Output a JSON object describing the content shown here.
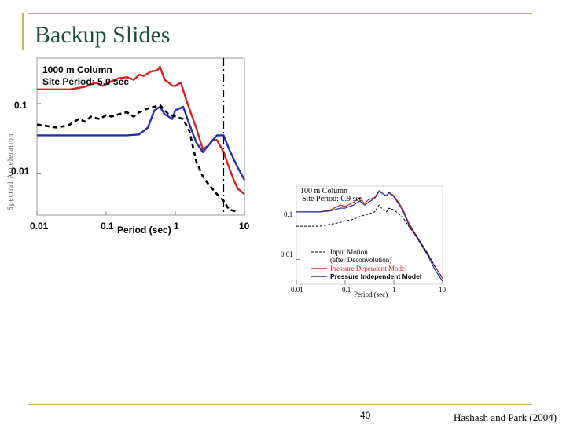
{
  "slide": {
    "title": "Backup Slides",
    "page_number": "40",
    "citation": "Hashash and Park (2004)"
  },
  "colors": {
    "accent_rule": "#c9b458",
    "title": "#1f4e3d",
    "pressure_dependent": "#d42020",
    "pressure_independent": "#2030b0",
    "input_motion": "#000000"
  },
  "chart_data": [
    {
      "type": "line",
      "title": "1000 m Column",
      "subtitle": "Site Period: 5.0 sec",
      "xlabel": "Period (sec)",
      "ylabel": "Spectral Acceleration",
      "xscale": "log",
      "yscale": "log",
      "xlim": [
        0.01,
        10
      ],
      "ylim": [
        0.0025,
        0.45
      ],
      "x_ticks": [
        "0.01",
        "0.1",
        "1",
        "10"
      ],
      "y_ticks": [
        "0.1",
        "0.01"
      ],
      "site_period_line": 5.0,
      "series": [
        {
          "key": "pressure_dependent",
          "style": "solid",
          "points": [
            [
              0.01,
              0.16
            ],
            [
              0.03,
              0.16
            ],
            [
              0.05,
              0.175
            ],
            [
              0.07,
              0.2
            ],
            [
              0.09,
              0.18
            ],
            [
              0.12,
              0.21
            ],
            [
              0.15,
              0.23
            ],
            [
              0.2,
              0.24
            ],
            [
              0.25,
              0.22
            ],
            [
              0.3,
              0.26
            ],
            [
              0.35,
              0.25
            ],
            [
              0.45,
              0.29
            ],
            [
              0.55,
              0.3
            ],
            [
              0.6,
              0.34
            ],
            [
              0.7,
              0.22
            ],
            [
              0.8,
              0.2
            ],
            [
              0.9,
              0.18
            ],
            [
              1.0,
              0.18
            ],
            [
              1.2,
              0.2
            ],
            [
              1.5,
              0.1
            ],
            [
              2.0,
              0.045
            ],
            [
              2.5,
              0.022
            ],
            [
              3.0,
              0.025
            ],
            [
              3.5,
              0.03
            ],
            [
              4.0,
              0.03
            ],
            [
              5.0,
              0.02
            ],
            [
              6.0,
              0.012
            ],
            [
              7.0,
              0.008
            ],
            [
              8.0,
              0.006
            ],
            [
              10.0,
              0.005
            ]
          ]
        },
        {
          "key": "pressure_independent",
          "style": "solid",
          "points": [
            [
              0.01,
              0.035
            ],
            [
              0.05,
              0.035
            ],
            [
              0.1,
              0.035
            ],
            [
              0.2,
              0.035
            ],
            [
              0.3,
              0.036
            ],
            [
              0.4,
              0.045
            ],
            [
              0.5,
              0.08
            ],
            [
              0.6,
              0.09
            ],
            [
              0.7,
              0.07
            ],
            [
              0.8,
              0.065
            ],
            [
              0.9,
              0.06
            ],
            [
              1.0,
              0.08
            ],
            [
              1.3,
              0.09
            ],
            [
              1.6,
              0.05
            ],
            [
              2.0,
              0.028
            ],
            [
              2.5,
              0.02
            ],
            [
              3.0,
              0.025
            ],
            [
              4.0,
              0.035
            ],
            [
              5.0,
              0.035
            ],
            [
              6.0,
              0.022
            ],
            [
              8.0,
              0.012
            ],
            [
              10.0,
              0.008
            ]
          ]
        },
        {
          "key": "input_motion",
          "style": "dashed",
          "points": [
            [
              0.01,
              0.05
            ],
            [
              0.02,
              0.045
            ],
            [
              0.03,
              0.05
            ],
            [
              0.04,
              0.06
            ],
            [
              0.05,
              0.055
            ],
            [
              0.06,
              0.065
            ],
            [
              0.08,
              0.06
            ],
            [
              0.1,
              0.068
            ],
            [
              0.12,
              0.065
            ],
            [
              0.15,
              0.07
            ],
            [
              0.2,
              0.075
            ],
            [
              0.25,
              0.065
            ],
            [
              0.3,
              0.075
            ],
            [
              0.4,
              0.085
            ],
            [
              0.5,
              0.09
            ],
            [
              0.6,
              0.095
            ],
            [
              0.7,
              0.08
            ],
            [
              0.8,
              0.07
            ],
            [
              1.0,
              0.065
            ],
            [
              1.3,
              0.06
            ],
            [
              1.6,
              0.04
            ],
            [
              2.0,
              0.015
            ],
            [
              2.5,
              0.009
            ],
            [
              3.0,
              0.007
            ],
            [
              4.0,
              0.005
            ],
            [
              5.0,
              0.004
            ],
            [
              6.0,
              0.003
            ],
            [
              8.0,
              0.0028
            ]
          ]
        }
      ]
    },
    {
      "type": "line",
      "title": "100 m Column",
      "subtitle": "Site Period: 0.9 sec",
      "xlabel": "Period (sec)",
      "xscale": "log",
      "yscale": "log",
      "xlim": [
        0.01,
        10
      ],
      "ylim": [
        0.003,
        0.35
      ],
      "x_ticks": [
        "0.01",
        "0.1",
        "1",
        "10"
      ],
      "y_ticks": [
        "0.1",
        "0.01"
      ],
      "legend": [
        {
          "key": "input_motion",
          "label": "Input Motion",
          "sublabel": "(after Deconvolution)"
        },
        {
          "key": "pressure_dependent",
          "label": "Pressure Dependent Model"
        },
        {
          "key": "pressure_independent",
          "label": "Pressure Independent Model"
        }
      ],
      "series": [
        {
          "key": "pressure_dependent",
          "style": "solid",
          "points": [
            [
              0.01,
              0.1
            ],
            [
              0.03,
              0.1
            ],
            [
              0.05,
              0.11
            ],
            [
              0.08,
              0.14
            ],
            [
              0.1,
              0.13
            ],
            [
              0.15,
              0.16
            ],
            [
              0.2,
              0.2
            ],
            [
              0.25,
              0.15
            ],
            [
              0.3,
              0.18
            ],
            [
              0.4,
              0.2
            ],
            [
              0.5,
              0.28
            ],
            [
              0.6,
              0.24
            ],
            [
              0.7,
              0.22
            ],
            [
              0.8,
              0.26
            ],
            [
              1.0,
              0.22
            ],
            [
              1.5,
              0.12
            ],
            [
              2.0,
              0.06
            ],
            [
              3.0,
              0.03
            ],
            [
              5.0,
              0.013
            ],
            [
              7.0,
              0.007
            ],
            [
              10.0,
              0.004
            ]
          ]
        },
        {
          "key": "pressure_independent",
          "style": "solid",
          "points": [
            [
              0.01,
              0.1
            ],
            [
              0.03,
              0.1
            ],
            [
              0.05,
              0.105
            ],
            [
              0.08,
              0.12
            ],
            [
              0.1,
              0.12
            ],
            [
              0.15,
              0.14
            ],
            [
              0.2,
              0.17
            ],
            [
              0.25,
              0.14
            ],
            [
              0.3,
              0.16
            ],
            [
              0.4,
              0.19
            ],
            [
              0.5,
              0.27
            ],
            [
              0.6,
              0.24
            ],
            [
              0.7,
              0.22
            ],
            [
              0.8,
              0.25
            ],
            [
              1.0,
              0.21
            ],
            [
              1.5,
              0.11
            ],
            [
              2.0,
              0.055
            ],
            [
              3.0,
              0.028
            ],
            [
              5.0,
              0.012
            ],
            [
              7.0,
              0.006
            ],
            [
              10.0,
              0.0035
            ]
          ]
        },
        {
          "key": "input_motion",
          "style": "dashed",
          "points": [
            [
              0.01,
              0.05
            ],
            [
              0.03,
              0.05
            ],
            [
              0.05,
              0.055
            ],
            [
              0.08,
              0.06
            ],
            [
              0.1,
              0.065
            ],
            [
              0.15,
              0.07
            ],
            [
              0.2,
              0.08
            ],
            [
              0.3,
              0.09
            ],
            [
              0.4,
              0.1
            ],
            [
              0.5,
              0.14
            ],
            [
              0.6,
              0.11
            ],
            [
              0.7,
              0.1
            ],
            [
              0.8,
              0.12
            ],
            [
              1.0,
              0.11
            ],
            [
              1.5,
              0.08
            ],
            [
              2.0,
              0.05
            ],
            [
              3.0,
              0.03
            ],
            [
              5.0,
              0.013
            ],
            [
              7.0,
              0.007
            ],
            [
              10.0,
              0.004
            ]
          ]
        }
      ]
    }
  ]
}
